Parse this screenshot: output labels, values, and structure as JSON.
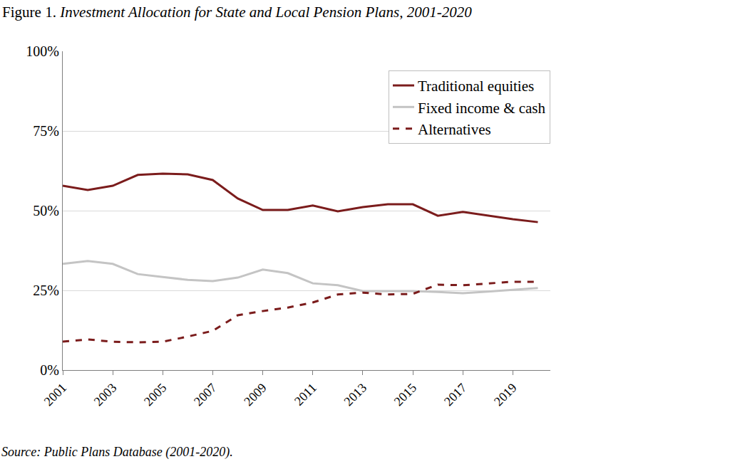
{
  "chart_data": {
    "type": "line",
    "title": "Figure 1. Investment Allocation for State and Local Pension Plans, 2001-2020",
    "annotations": [
      "Source: Public Plans Database (2001-2020)."
    ],
    "x": [
      2001,
      2002,
      2003,
      2004,
      2005,
      2006,
      2007,
      2008,
      2009,
      2010,
      2011,
      2012,
      2013,
      2014,
      2015,
      2016,
      2017,
      2018,
      2019,
      2020
    ],
    "series": [
      {
        "name": "Traditional equities",
        "color": "#7b1c1c",
        "line_style": "solid",
        "values": [
          57.8,
          56.5,
          57.8,
          61.2,
          61.6,
          61.4,
          59.6,
          53.8,
          50.2,
          50.2,
          51.6,
          49.8,
          51.1,
          52.0,
          52.0,
          48.4,
          49.6,
          48.4,
          47.3,
          46.4
        ]
      },
      {
        "name": "Fixed income & cash",
        "color": "#c4c4c4",
        "line_style": "solid",
        "values": [
          33.3,
          34.2,
          33.3,
          30.1,
          29.2,
          28.3,
          27.9,
          29.0,
          31.5,
          30.4,
          27.2,
          26.6,
          24.8,
          24.8,
          24.8,
          24.5,
          24.1,
          24.6,
          25.2,
          25.7
        ]
      },
      {
        "name": "Alternatives",
        "color": "#7b1c1c",
        "line_style": "dashed",
        "values": [
          8.9,
          9.6,
          8.9,
          8.7,
          8.9,
          10.5,
          12.3,
          17.2,
          18.5,
          19.6,
          21.2,
          23.7,
          24.3,
          23.7,
          23.9,
          26.8,
          26.6,
          27.2,
          27.7,
          27.7
        ]
      }
    ],
    "xlim": [
      2001,
      2020.5
    ],
    "xticks": [
      2001,
      2003,
      2005,
      2007,
      2009,
      2011,
      2013,
      2015,
      2017,
      2019
    ],
    "ylim": [
      0,
      100
    ],
    "yticks": [
      {
        "value": 0,
        "label": "0%"
      },
      {
        "value": 25,
        "label": "25%"
      },
      {
        "value": 50,
        "label": "50%"
      },
      {
        "value": 75,
        "label": "75%"
      },
      {
        "value": 100,
        "label": "100%"
      }
    ],
    "grid": true,
    "legend": "upper right"
  }
}
